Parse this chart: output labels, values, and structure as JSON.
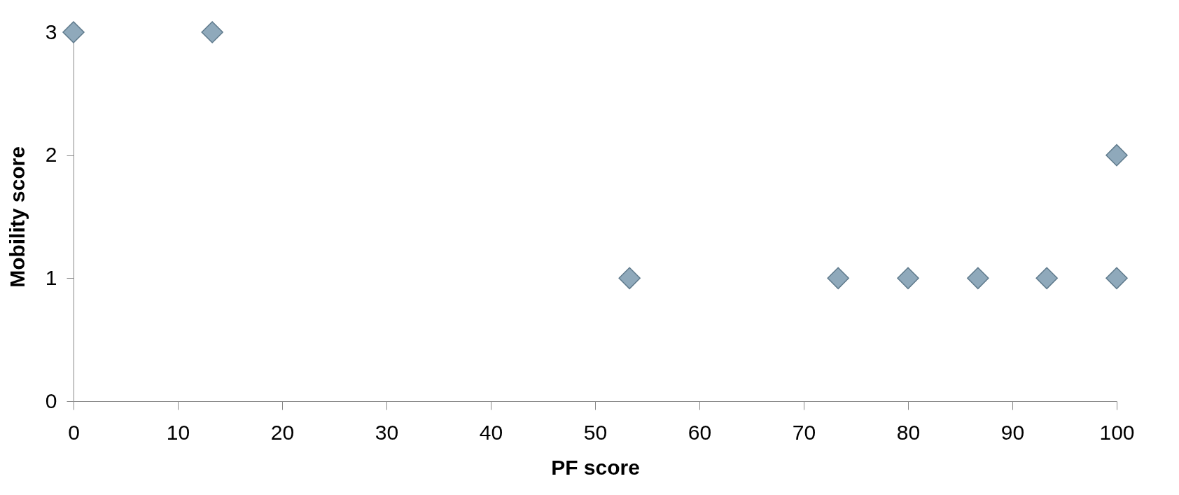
{
  "chart_data": {
    "type": "scatter",
    "xlabel": "PF score",
    "ylabel": "Mobility score",
    "x": [
      0,
      13.3,
      53.3,
      73.3,
      80,
      86.7,
      93.3,
      100,
      100
    ],
    "series": [
      {
        "color": "#8fa9bb",
        "values": [
          3,
          3,
          1,
          1,
          1,
          1,
          1,
          1,
          2
        ]
      }
    ],
    "xlim": [
      0,
      100
    ],
    "xticks": [
      0,
      10,
      20,
      30,
      40,
      50,
      60,
      70,
      80,
      90,
      100
    ],
    "ylim": [
      0,
      3
    ],
    "yticks": [
      0,
      1,
      2,
      3
    ],
    "grid": false,
    "legend": false,
    "marker": "diamond"
  }
}
